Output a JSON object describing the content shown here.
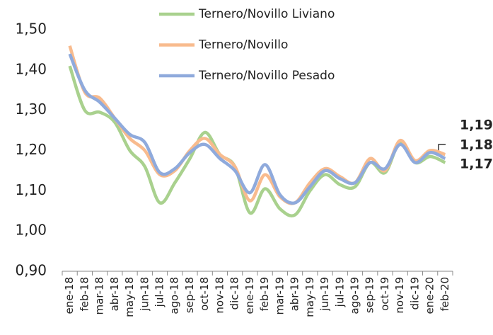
{
  "chart_data": {
    "type": "line",
    "categories": [
      "ene-18",
      "feb-18",
      "mar-18",
      "abr-18",
      "may-18",
      "jun-18",
      "jul-18",
      "ago-18",
      "sep-18",
      "oct-18",
      "nov-18",
      "dic-18",
      "ene-19",
      "feb-19",
      "mar-19",
      "abr-19",
      "may-19",
      "jun-19",
      "jul-19",
      "ago-19",
      "sep-19",
      "oct-19",
      "nov-19",
      "dic-19",
      "ene-20",
      "feb-20"
    ],
    "series": [
      {
        "name": "Ternero/Novillo Liviano",
        "color": "#a9d18e",
        "label_color": "#9bcc5a",
        "values": [
          1.41,
          1.3,
          1.295,
          1.27,
          1.2,
          1.16,
          1.07,
          1.12,
          1.18,
          1.245,
          1.19,
          1.16,
          1.045,
          1.105,
          1.055,
          1.04,
          1.1,
          1.14,
          1.115,
          1.11,
          1.17,
          1.145,
          1.22,
          1.17,
          1.185,
          1.17
        ],
        "value_labels": [
          null,
          null,
          null,
          null,
          null,
          null,
          null,
          null,
          null,
          null,
          null,
          null,
          null,
          null,
          null,
          null,
          null,
          null,
          null,
          null,
          null,
          null,
          null,
          null,
          null,
          "1,17"
        ]
      },
      {
        "name": "Ternero/Novillo",
        "color": "#f8bb8e",
        "label_color": "#f4a47a",
        "values": [
          1.46,
          1.345,
          1.33,
          1.28,
          1.23,
          1.2,
          1.14,
          1.15,
          1.2,
          1.23,
          1.19,
          1.16,
          1.075,
          1.14,
          1.085,
          1.07,
          1.12,
          1.155,
          1.135,
          1.12,
          1.18,
          1.15,
          1.225,
          1.175,
          1.2,
          1.19
        ],
        "value_labels": [
          null,
          null,
          null,
          null,
          null,
          null,
          null,
          null,
          null,
          null,
          null,
          null,
          null,
          null,
          null,
          null,
          null,
          null,
          null,
          null,
          null,
          null,
          null,
          null,
          null,
          "1,19"
        ]
      },
      {
        "name": "Ternero/Novillo Pesado",
        "color": "#8faadc",
        "label_color": "#b4c7e7",
        "values": [
          1.44,
          1.35,
          1.32,
          1.28,
          1.24,
          1.22,
          1.145,
          1.155,
          1.195,
          1.215,
          1.18,
          1.15,
          1.095,
          1.165,
          1.09,
          1.07,
          1.11,
          1.15,
          1.13,
          1.12,
          1.17,
          1.155,
          1.215,
          1.17,
          1.195,
          1.18
        ],
        "value_labels": [
          null,
          null,
          null,
          null,
          null,
          null,
          null,
          null,
          null,
          null,
          null,
          null,
          null,
          null,
          null,
          null,
          null,
          null,
          null,
          null,
          null,
          null,
          null,
          null,
          null,
          "1,18"
        ]
      }
    ],
    "ylim": [
      0.9,
      1.5
    ],
    "yticks": [
      {
        "value": 0.9,
        "label": "0,90"
      },
      {
        "value": 1.0,
        "label": "1,00"
      },
      {
        "value": 1.1,
        "label": "1,10"
      },
      {
        "value": 1.2,
        "label": "1,20"
      },
      {
        "value": 1.3,
        "label": "1,30"
      },
      {
        "value": 1.4,
        "label": "1,40"
      },
      {
        "value": 1.5,
        "label": "1,50"
      }
    ],
    "grid": false,
    "legend": "top"
  }
}
